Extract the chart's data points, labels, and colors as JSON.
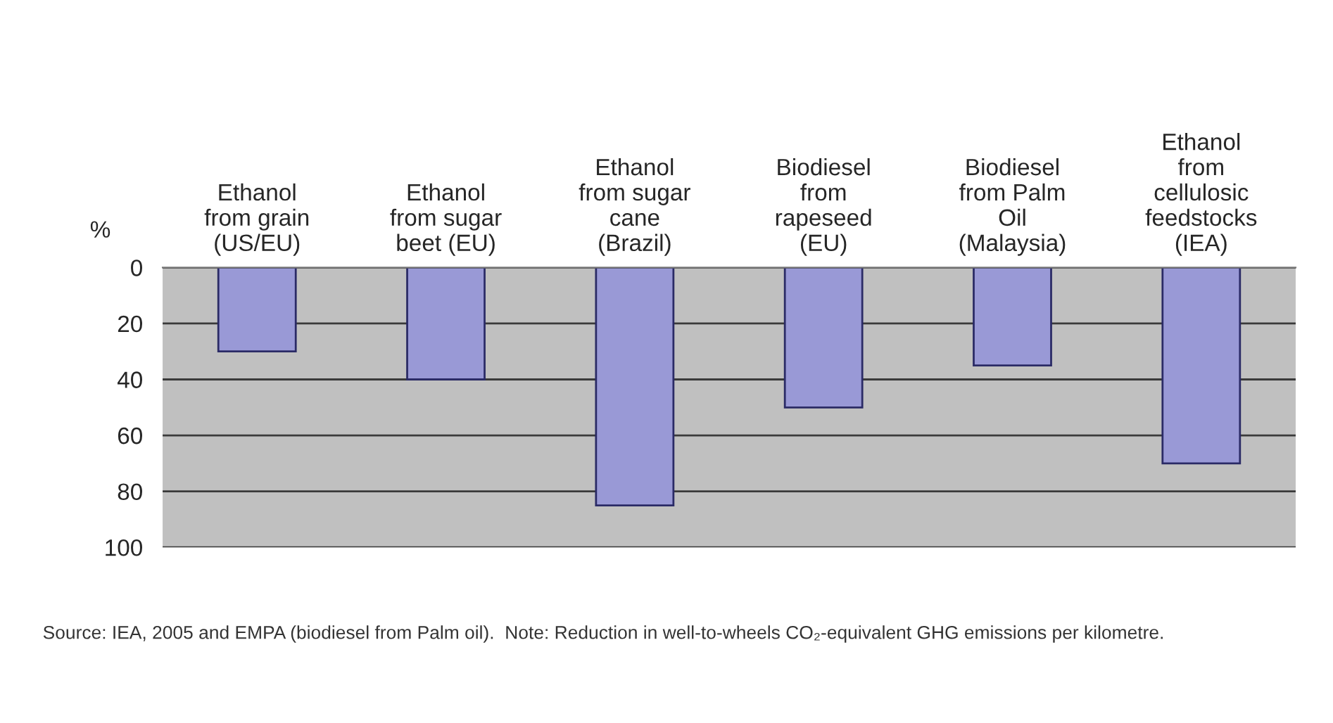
{
  "chart_data": {
    "type": "bar",
    "categories": [
      "Ethanol from grain (US/EU)",
      "Ethanol from sugar beet (EU)",
      "Ethanol from sugar cane (Brazil)",
      "Biodiesel from rapeseed (EU)",
      "Biodiesel from Palm Oil (Malaysia)",
      "Ethanol from cellulosic feedstocks (IEA)"
    ],
    "values": [
      30,
      40,
      85,
      50,
      35,
      70
    ],
    "color": "#9999d6",
    "ylabel": "%",
    "ylim": [
      100,
      0
    ],
    "yticks": [
      0,
      20,
      40,
      60,
      80,
      100
    ],
    "grid": "y",
    "annotations": [
      "Source: IEA, 2005 and EMPA (biodiesel from Palm oil).  Note: Reduction in well-to-wheels CO₂-equivalent GHG emissions per kilometre."
    ]
  }
}
